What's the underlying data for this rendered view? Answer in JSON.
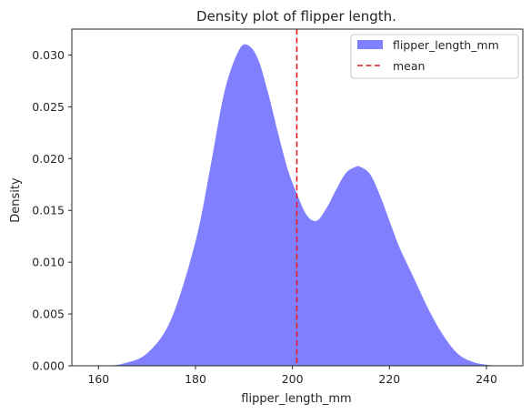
{
  "chart_data": {
    "type": "area",
    "title": "Density plot of flipper length.",
    "xlabel": "flipper_length_mm",
    "ylabel": "Density",
    "xlim": [
      154.5,
      247.5
    ],
    "ylim": [
      0,
      0.0325
    ],
    "xticks": [
      160,
      180,
      200,
      220,
      240
    ],
    "yticks": [
      0.0,
      0.005,
      0.01,
      0.015,
      0.02,
      0.025,
      0.03
    ],
    "grid": false,
    "legend_position": "top-right",
    "series": [
      {
        "name": "flipper_length_mm",
        "kind": "density-area",
        "color": "#8080ff",
        "x": [
          161,
          165,
          170,
          175,
          180,
          183,
          186,
          189,
          191,
          193,
          195,
          197,
          199,
          201,
          203,
          205,
          207,
          209,
          211,
          213,
          214,
          216,
          218,
          220,
          222,
          225,
          228,
          231,
          234,
          237,
          240,
          243
        ],
        "y": [
          0.0,
          0.0002,
          0.0012,
          0.0045,
          0.012,
          0.019,
          0.0265,
          0.0305,
          0.0309,
          0.0295,
          0.0263,
          0.0225,
          0.019,
          0.0165,
          0.0145,
          0.014,
          0.0152,
          0.017,
          0.0186,
          0.0192,
          0.0192,
          0.0185,
          0.0165,
          0.014,
          0.0115,
          0.0085,
          0.0055,
          0.003,
          0.0012,
          0.0004,
          0.0001,
          0.0
        ]
      },
      {
        "name": "mean",
        "kind": "vline",
        "color": "#e41a1c",
        "x": 200.9
      }
    ]
  }
}
